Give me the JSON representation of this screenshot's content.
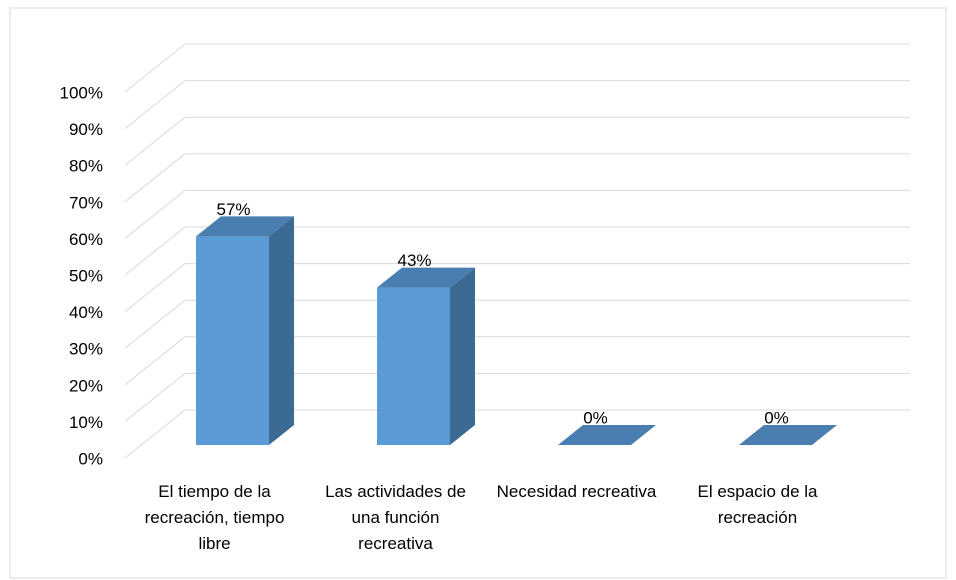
{
  "chart_data": {
    "type": "bar",
    "categories": [
      "El tiempo de la recreación, tiempo libre",
      "Las actividades de una función recreativa",
      "Necesidad recreativa",
      "El espacio de la recreación"
    ],
    "values": [
      57,
      43,
      0,
      0
    ],
    "value_labels": [
      "57%",
      "43%",
      "0%",
      "0%"
    ],
    "color": "#5b9bd5",
    "ylim": [
      0,
      100
    ],
    "yticks": [
      {
        "value": 0,
        "label": "0%"
      },
      {
        "value": 10,
        "label": "10%"
      },
      {
        "value": 20,
        "label": "20%"
      },
      {
        "value": 30,
        "label": "30%"
      },
      {
        "value": 40,
        "label": "40%"
      },
      {
        "value": 50,
        "label": "50%"
      },
      {
        "value": 60,
        "label": "60%"
      },
      {
        "value": 70,
        "label": "70%"
      },
      {
        "value": 80,
        "label": "80%"
      },
      {
        "value": 90,
        "label": "90%"
      },
      {
        "value": 100,
        "label": "100%"
      }
    ],
    "grid": true
  }
}
